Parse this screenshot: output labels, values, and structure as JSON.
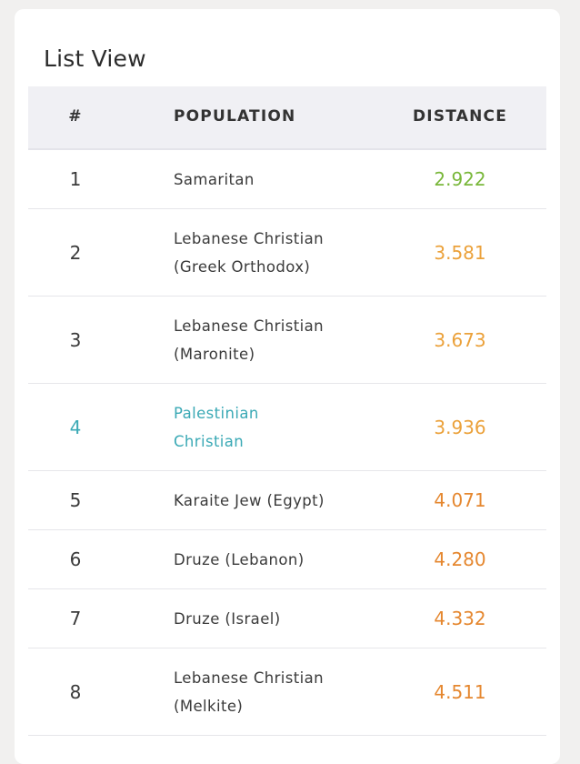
{
  "card": {
    "title": "List View"
  },
  "table": {
    "headers": {
      "num": "#",
      "population": "POPULATION",
      "distance": "DISTANCE"
    },
    "rows": [
      {
        "num": "1",
        "population": "Samaritan",
        "distance": "2.922",
        "color": "#79b73a"
      },
      {
        "num": "2",
        "population": "Lebanese Christian (Greek Orthodox)",
        "distance": "3.581",
        "color": "#eba13a"
      },
      {
        "num": "3",
        "population": "Lebanese Christian (Maronite)",
        "distance": "3.673",
        "color": "#eba13a"
      },
      {
        "num": "4",
        "population": "Palestinian Christian",
        "distance": "3.936",
        "color": "#eba13a",
        "highlight": true
      },
      {
        "num": "5",
        "population": "Karaite Jew (Egypt)",
        "distance": "4.071",
        "color": "#e5872f"
      },
      {
        "num": "6",
        "population": "Druze (Lebanon)",
        "distance": "4.280",
        "color": "#e5872f"
      },
      {
        "num": "7",
        "population": "Druze (Israel)",
        "distance": "4.332",
        "color": "#e5872f"
      },
      {
        "num": "8",
        "population": "Lebanese Christian (Melkite)",
        "distance": "4.511",
        "color": "#e5872f"
      }
    ]
  }
}
